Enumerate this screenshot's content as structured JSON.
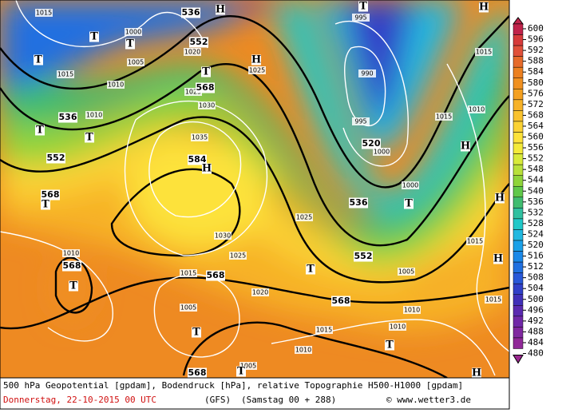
{
  "map": {
    "geopotential_labels": [
      536,
      552,
      568,
      536,
      552,
      568,
      584,
      568,
      568,
      520,
      536,
      552,
      568,
      568
    ],
    "pressure_labels": [
      1015,
      1000,
      1005,
      1010,
      1015,
      1010,
      1020,
      1025,
      1030,
      1035,
      1025,
      995,
      990,
      995,
      1000,
      1000,
      1015,
      1010,
      1015,
      1025,
      1030,
      1025,
      1015,
      1020,
      1010,
      1005,
      1015,
      1010,
      1010,
      1005,
      1015,
      1015,
      1010,
      1005
    ],
    "highs": [
      "H",
      "H",
      "H",
      "H",
      "H",
      "H",
      "H",
      "H"
    ],
    "lows": [
      "T",
      "T",
      "T",
      "T",
      "T",
      "T",
      "T",
      "T",
      "T",
      "T",
      "T",
      "T",
      "T",
      "T"
    ]
  },
  "legend": {
    "values": [
      600,
      596,
      592,
      588,
      584,
      580,
      576,
      572,
      568,
      564,
      560,
      556,
      552,
      548,
      544,
      540,
      536,
      532,
      528,
      524,
      520,
      516,
      512,
      508,
      504,
      500,
      496,
      492,
      488,
      484,
      480
    ],
    "colors": [
      "#c0234a",
      "#d63a3a",
      "#e0503a",
      "#e66a2a",
      "#ec8020",
      "#f09020",
      "#f4a020",
      "#f7b228",
      "#f9c22e",
      "#fbd234",
      "#fde23a",
      "#f4ea3a",
      "#d8ea3a",
      "#b8e03a",
      "#8fd43a",
      "#60c84a",
      "#40bc70",
      "#30c0a0",
      "#20c8c8",
      "#20b8e0",
      "#1aa0e8",
      "#1a88e8",
      "#2070e0",
      "#2858d8",
      "#3040c8",
      "#4030b8",
      "#5a2ab0",
      "#7028a8",
      "#8028a0",
      "#902898",
      "#9a2890"
    ]
  },
  "footer": {
    "description": "500 hPa Geopotential [gpdam], Bodendruck [hPa], relative Topographie H500-H1000 [gpdam]",
    "date": "Donnerstag, 22-10-2015  00 UTC",
    "model": "(GFS)",
    "forecast": "(Samstag 00 + 288)",
    "source": "© www.wetter3.de"
  }
}
